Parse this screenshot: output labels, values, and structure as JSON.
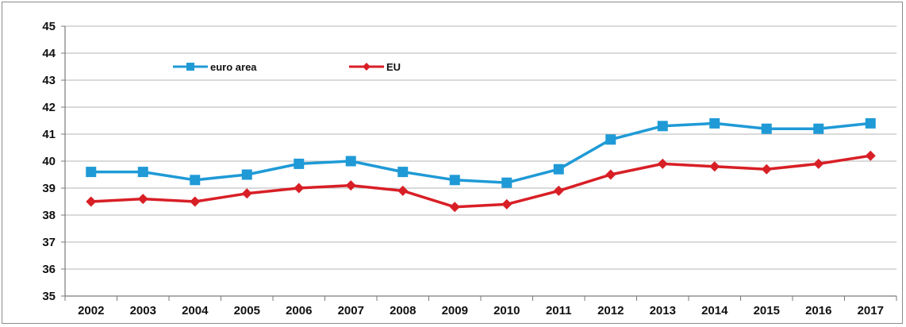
{
  "chart_data": {
    "type": "line",
    "title": "",
    "xlabel": "",
    "ylabel": "",
    "categories": [
      "2002",
      "2003",
      "2004",
      "2005",
      "2006",
      "2007",
      "2008",
      "2009",
      "2010",
      "2011",
      "2012",
      "2013",
      "2014",
      "2015",
      "2016",
      "2017"
    ],
    "ylim": [
      35,
      45
    ],
    "yticks": [
      "35",
      "36",
      "37",
      "38",
      "39",
      "40",
      "41",
      "42",
      "43",
      "44",
      "45"
    ],
    "grid": "horizontal",
    "legend_position": "top-left",
    "series": [
      {
        "name": "euro area",
        "color": "#1f9ad6",
        "marker": "square",
        "values": [
          39.6,
          39.6,
          39.3,
          39.5,
          39.9,
          40.0,
          39.6,
          39.3,
          39.2,
          39.7,
          40.8,
          41.3,
          41.4,
          41.2,
          41.2,
          41.4
        ]
      },
      {
        "name": "EU",
        "color": "#d81f26",
        "marker": "diamond",
        "values": [
          38.5,
          38.6,
          38.5,
          38.8,
          39.0,
          39.1,
          38.9,
          38.3,
          38.4,
          38.9,
          39.5,
          39.9,
          39.8,
          39.7,
          39.9,
          40.2
        ]
      }
    ]
  }
}
